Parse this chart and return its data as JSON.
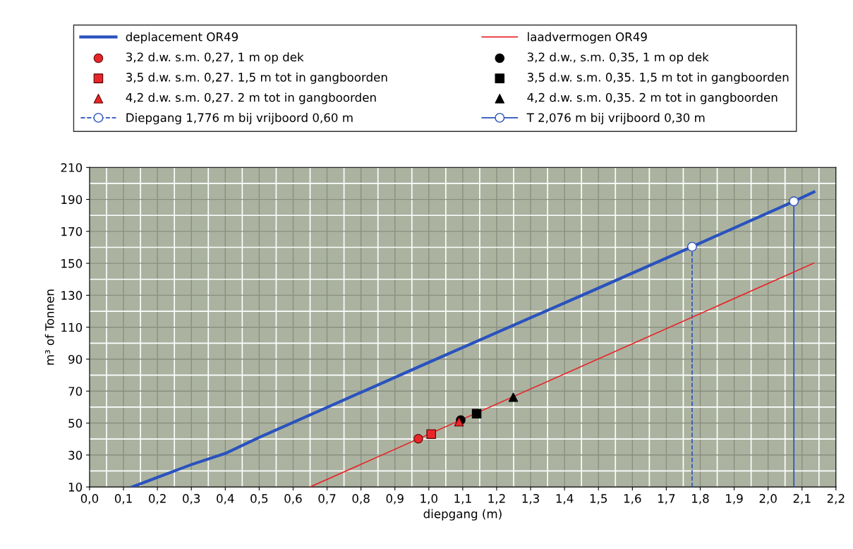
{
  "chart_data": {
    "type": "line",
    "xlabel": "diepgang (m)",
    "ylabel": "m³ of Tonnen",
    "xlim": [
      0,
      2.2
    ],
    "ylim": [
      10,
      210
    ],
    "xticks": [
      {
        "value": 0,
        "label": "0,0"
      },
      {
        "value": 0.1,
        "label": "0,1"
      },
      {
        "value": 0.2,
        "label": "0,2"
      },
      {
        "value": 0.3,
        "label": "0,3"
      },
      {
        "value": 0.4,
        "label": "0,4"
      },
      {
        "value": 0.5,
        "label": "0,5"
      },
      {
        "value": 0.6,
        "label": "0,6"
      },
      {
        "value": 0.7,
        "label": "0,7"
      },
      {
        "value": 0.8,
        "label": "0,8"
      },
      {
        "value": 0.9,
        "label": "0,9"
      },
      {
        "value": 1.0,
        "label": "1,0"
      },
      {
        "value": 1.1,
        "label": "1,1"
      },
      {
        "value": 1.2,
        "label": "1,2"
      },
      {
        "value": 1.3,
        "label": "1,3"
      },
      {
        "value": 1.4,
        "label": "1,4"
      },
      {
        "value": 1.5,
        "label": "1,5"
      },
      {
        "value": 1.6,
        "label": "1,6"
      },
      {
        "value": 1.7,
        "label": "1,7"
      },
      {
        "value": 1.8,
        "label": "1,8"
      },
      {
        "value": 1.9,
        "label": "1,9"
      },
      {
        "value": 2.0,
        "label": "2,0"
      },
      {
        "value": 2.1,
        "label": "2,1"
      },
      {
        "value": 2.2,
        "label": "2,2"
      }
    ],
    "yticks": [
      10,
      30,
      50,
      70,
      90,
      110,
      130,
      150,
      170,
      190,
      210
    ],
    "grid": true,
    "legend": "top",
    "series": [
      {
        "name": "deplacement OR49",
        "color": "#2a52be",
        "marker": "none",
        "line_style": "solid",
        "x": [
          0.125,
          0.2,
          0.3,
          0.4,
          0.5,
          1.0,
          1.5,
          1.776,
          2.076,
          2.135
        ],
        "values": [
          10,
          16,
          24,
          31,
          41,
          88,
          134.5,
          160.4,
          188.8,
          194.7
        ]
      },
      {
        "name": "laadvermogen OR49",
        "color": "#e8262a",
        "marker": "none",
        "line_style": "solid",
        "x": [
          0.65,
          2.135
        ],
        "values": [
          10,
          150.1
        ]
      },
      {
        "name": "3,2 d.w. s.m. 0,27, 1 m op dek",
        "type": "scatter",
        "color": "#e8262a",
        "marker": "circle",
        "x": [
          0.969
        ],
        "values": [
          40.2
        ]
      },
      {
        "name": "3,2 d.w., s.m. 0,35, 1 m op dek",
        "type": "scatter",
        "color": "#000000",
        "marker": "circle",
        "x": [
          1.094
        ],
        "values": [
          51.9
        ]
      },
      {
        "name": "3,5 d.w. s.m. 0,27. 1,5 m tot in gangboorden",
        "type": "scatter",
        "color": "#e8262a",
        "marker": "square",
        "x": [
          1.007
        ],
        "values": [
          43.1
        ]
      },
      {
        "name": "3,5 d.w. s.m. 0,35. 1,5 m tot in gangboorden",
        "type": "scatter",
        "color": "#000000",
        "marker": "square",
        "x": [
          1.141
        ],
        "values": [
          55.9
        ]
      },
      {
        "name": "4,2 d.w. s.m. 0,27. 2 m tot in gangboorden",
        "type": "scatter",
        "color": "#e8262a",
        "marker": "triangle",
        "x": [
          1.089
        ],
        "values": [
          50.9
        ]
      },
      {
        "name": "4,2 d.w. s.m. 0,35. 2 m tot in gangboorden",
        "type": "scatter",
        "color": "#000000",
        "marker": "triangle",
        "x": [
          1.249
        ],
        "values": [
          66.2
        ]
      },
      {
        "name": "Diepgang 1,776 m bij vrijboord 0,60 m",
        "color": "#2a52be",
        "marker": "circle",
        "line_style": "dashed",
        "x": [
          1.776
        ],
        "values": [
          160.4
        ],
        "errors": [
          [
            10,
            160.4
          ]
        ]
      },
      {
        "name": "T 2,076 m bij vrijboord 0,30 m",
        "color": "#2a52be",
        "marker": "circle",
        "line_style": "solid",
        "x": [
          2.076
        ],
        "values": [
          188.8
        ],
        "errors": [
          [
            10,
            188.8
          ]
        ]
      }
    ]
  }
}
